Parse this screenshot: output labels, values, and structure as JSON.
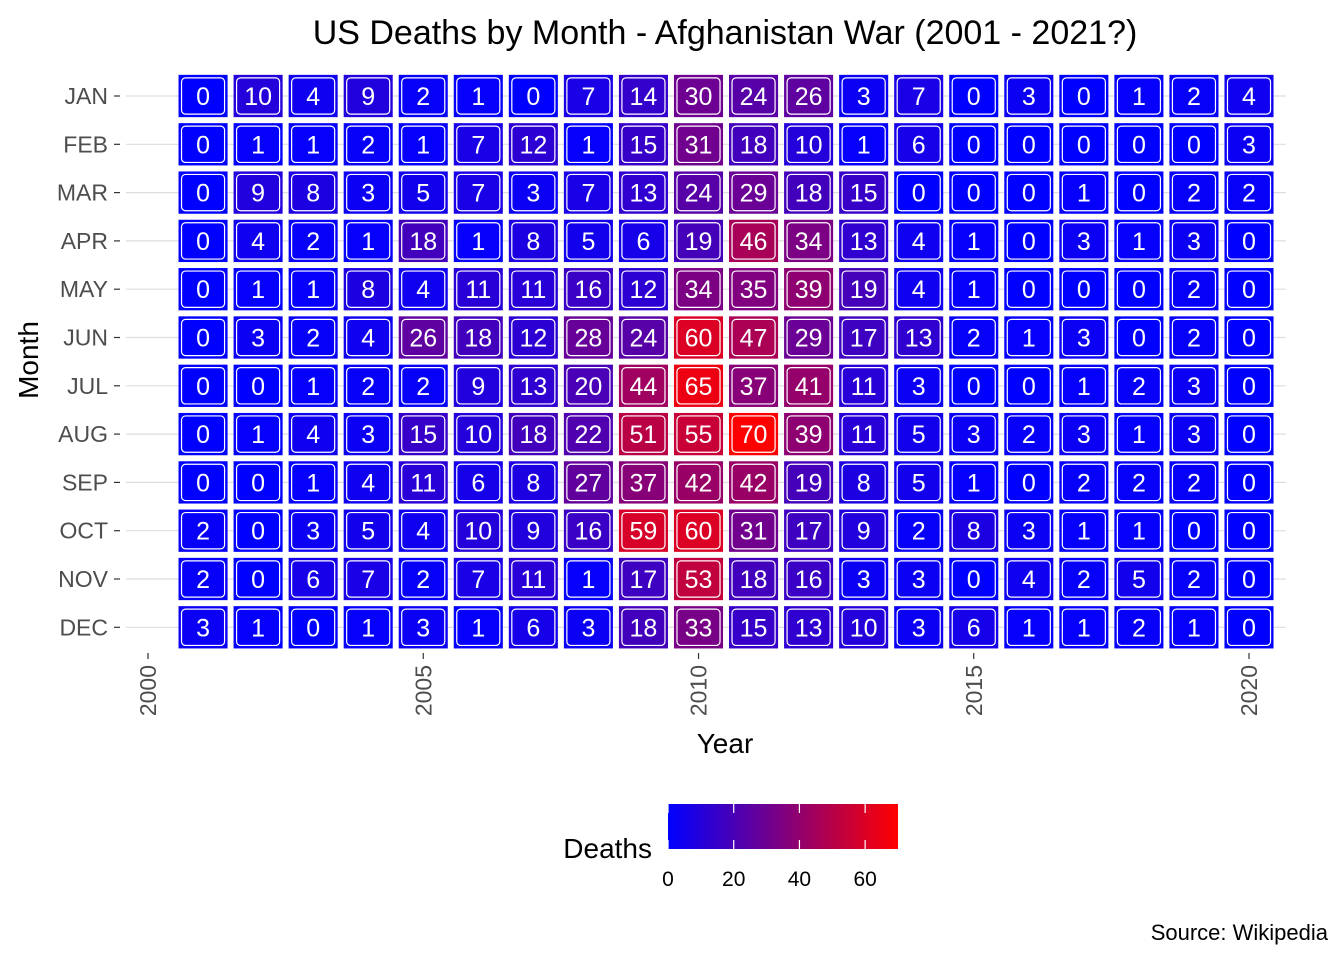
{
  "chart_data": {
    "type": "heatmap",
    "title": "US Deaths by Month - Afghanistan War (2001 - 2021?)",
    "xlabel": "Year",
    "ylabel": "Month",
    "caption": "Source: Wikipedia",
    "x": [
      2001,
      2002,
      2003,
      2004,
      2005,
      2006,
      2007,
      2008,
      2009,
      2010,
      2011,
      2012,
      2013,
      2014,
      2015,
      2016,
      2017,
      2018,
      2019,
      2020
    ],
    "y": [
      "JAN",
      "FEB",
      "MAR",
      "APR",
      "MAY",
      "JUN",
      "JUL",
      "AUG",
      "SEP",
      "OCT",
      "NOV",
      "DEC"
    ],
    "xlim": [
      2000,
      2021
    ],
    "x_ticks": [
      2000,
      2005,
      2010,
      2015,
      2020
    ],
    "values": [
      [
        0,
        10,
        4,
        9,
        2,
        1,
        0,
        7,
        14,
        30,
        24,
        26,
        3,
        7,
        0,
        3,
        0,
        1,
        2,
        4
      ],
      [
        0,
        1,
        1,
        2,
        1,
        7,
        12,
        1,
        15,
        31,
        18,
        10,
        1,
        6,
        0,
        0,
        0,
        0,
        0,
        3
      ],
      [
        0,
        9,
        8,
        3,
        5,
        7,
        3,
        7,
        13,
        24,
        29,
        18,
        15,
        0,
        0,
        0,
        1,
        0,
        2,
        2
      ],
      [
        0,
        4,
        2,
        1,
        18,
        1,
        8,
        5,
        6,
        19,
        46,
        34,
        13,
        4,
        1,
        0,
        3,
        1,
        3,
        0
      ],
      [
        0,
        1,
        1,
        8,
        4,
        11,
        11,
        16,
        12,
        34,
        35,
        39,
        19,
        4,
        1,
        0,
        0,
        0,
        2,
        0
      ],
      [
        0,
        3,
        2,
        4,
        26,
        18,
        12,
        28,
        24,
        60,
        47,
        29,
        17,
        13,
        2,
        1,
        3,
        0,
        2,
        0
      ],
      [
        0,
        0,
        1,
        2,
        2,
        9,
        13,
        20,
        44,
        65,
        37,
        41,
        11,
        3,
        0,
        0,
        1,
        2,
        3,
        0
      ],
      [
        0,
        1,
        4,
        3,
        15,
        10,
        18,
        22,
        51,
        55,
        70,
        39,
        11,
        5,
        3,
        2,
        3,
        1,
        3,
        0
      ],
      [
        0,
        0,
        1,
        4,
        11,
        6,
        8,
        27,
        37,
        42,
        42,
        19,
        8,
        5,
        1,
        0,
        2,
        2,
        2,
        0
      ],
      [
        2,
        0,
        3,
        5,
        4,
        10,
        9,
        16,
        59,
        60,
        31,
        17,
        9,
        2,
        8,
        3,
        1,
        1,
        0,
        0
      ],
      [
        2,
        0,
        6,
        7,
        2,
        7,
        11,
        1,
        17,
        53,
        18,
        16,
        3,
        3,
        0,
        4,
        2,
        5,
        2,
        0
      ],
      [
        3,
        1,
        0,
        1,
        3,
        1,
        6,
        3,
        18,
        33,
        15,
        13,
        10,
        3,
        6,
        1,
        1,
        2,
        1,
        0
      ]
    ],
    "color_scale": {
      "low": "#0000ff",
      "high": "#ff0000",
      "min": 0,
      "max": 70
    },
    "legend": {
      "title": "Deaths",
      "ticks": [
        0,
        20,
        40,
        60
      ],
      "position": "bottom"
    },
    "grid": true
  }
}
